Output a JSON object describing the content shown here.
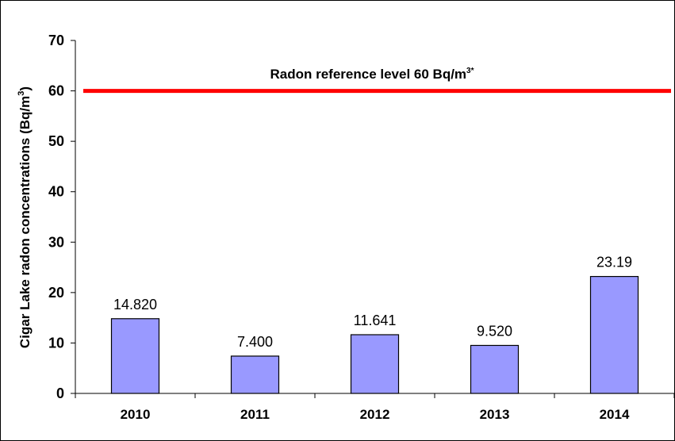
{
  "chart_data": {
    "type": "bar",
    "categories": [
      "2010",
      "2011",
      "2012",
      "2013",
      "2014"
    ],
    "values": [
      14.82,
      7.4,
      11.641,
      9.52,
      23.19
    ],
    "data_labels": [
      "14.820",
      "7.400",
      "11.641",
      "9.520",
      "23.19"
    ],
    "title": "",
    "xlabel": "",
    "ylabel": "Cigar Lake radon concentrations (Bq/m",
    "ylabel_sup": "3",
    "ylabel_close": ")",
    "ylim": [
      0,
      70
    ],
    "yticks": [
      "0",
      "10",
      "20",
      "30",
      "40",
      "50",
      "60",
      "70"
    ],
    "ytick_values": [
      0,
      10,
      20,
      30,
      40,
      50,
      60,
      70
    ],
    "grid": false,
    "legend": "none",
    "bar_color": "#9999ff",
    "reference_line": {
      "value": 60,
      "color": "#ff0000",
      "label": "Radon reference level 60 Bq/m",
      "label_sup": "3*"
    }
  }
}
